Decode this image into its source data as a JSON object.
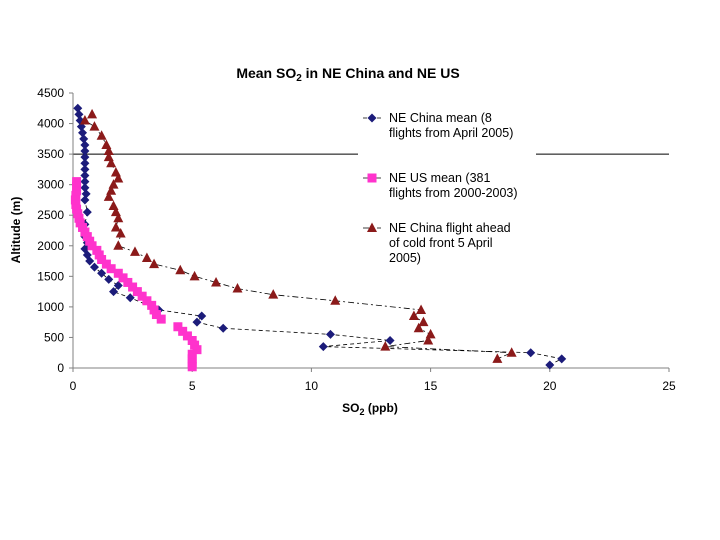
{
  "chart_data": {
    "type": "scatter",
    "title": "Mean SO",
    "title_sub": "2",
    "title_rest": " in NE China and NE US",
    "xlabel": "SO",
    "xlabel_sub": "2",
    "xlabel_rest": " (ppb)",
    "ylabel": "Altitude (m)",
    "xlim": [
      0,
      25
    ],
    "ylim": [
      0,
      4500
    ],
    "xticks": [
      "0",
      "5",
      "10",
      "15",
      "20",
      "25"
    ],
    "yticks": [
      "0",
      "500",
      "1000",
      "1500",
      "2000",
      "2500",
      "3000",
      "3500",
      "4000",
      "4500"
    ],
    "gridlines_y": [
      3500
    ],
    "legend_position": "right",
    "series": [
      {
        "name_lines": [
          "NE China mean (8",
          "flights from April 2005)"
        ],
        "marker": "diamond",
        "color": "#1c1c7a",
        "line": "dashed",
        "points": [
          [
            0.2,
            4250
          ],
          [
            0.25,
            4150
          ],
          [
            0.3,
            4050
          ],
          [
            0.35,
            3950
          ],
          [
            0.4,
            3850
          ],
          [
            0.45,
            3750
          ],
          [
            0.5,
            3650
          ],
          [
            0.5,
            3550
          ],
          [
            0.5,
            3450
          ],
          [
            0.5,
            3350
          ],
          [
            0.5,
            3250
          ],
          [
            0.5,
            3150
          ],
          [
            0.5,
            3050
          ],
          [
            0.5,
            2950
          ],
          [
            0.55,
            2850
          ],
          [
            0.5,
            2750
          ],
          [
            0.6,
            2550
          ],
          [
            0.5,
            2350
          ],
          [
            0.5,
            2150
          ],
          [
            0.6,
            2050
          ],
          [
            0.5,
            1950
          ],
          [
            0.6,
            1850
          ],
          [
            0.7,
            1750
          ],
          [
            0.9,
            1650
          ],
          [
            1.2,
            1550
          ],
          [
            1.5,
            1450
          ],
          [
            1.9,
            1350
          ],
          [
            1.7,
            1250
          ],
          [
            2.4,
            1150
          ],
          [
            3.6,
            950
          ],
          [
            5.4,
            850
          ],
          [
            5.2,
            750
          ],
          [
            6.3,
            650
          ],
          [
            10.8,
            550
          ],
          [
            13.3,
            450
          ],
          [
            10.5,
            350
          ],
          [
            19.2,
            250
          ],
          [
            20.5,
            150
          ],
          [
            20.0,
            50
          ]
        ]
      },
      {
        "name_lines": [
          "NE US mean (381",
          "flights from 2000-2003)"
        ],
        "marker": "square",
        "color": "#ff33cc",
        "line": "none",
        "points": [
          [
            0.15,
            3050
          ],
          [
            0.15,
            2975
          ],
          [
            0.15,
            2900
          ],
          [
            0.12,
            2825
          ],
          [
            0.1,
            2750
          ],
          [
            0.12,
            2675
          ],
          [
            0.15,
            2600
          ],
          [
            0.2,
            2525
          ],
          [
            0.25,
            2450
          ],
          [
            0.3,
            2375
          ],
          [
            0.4,
            2300
          ],
          [
            0.5,
            2225
          ],
          [
            0.6,
            2150
          ],
          [
            0.7,
            2075
          ],
          [
            0.8,
            2000
          ],
          [
            1.0,
            1925
          ],
          [
            1.1,
            1850
          ],
          [
            1.2,
            1775
          ],
          [
            1.4,
            1700
          ],
          [
            1.6,
            1625
          ],
          [
            1.9,
            1550
          ],
          [
            2.1,
            1475
          ],
          [
            2.3,
            1400
          ],
          [
            2.5,
            1325
          ],
          [
            2.7,
            1250
          ],
          [
            2.9,
            1175
          ],
          [
            3.1,
            1100
          ],
          [
            3.3,
            1025
          ],
          [
            3.4,
            950
          ],
          [
            3.5,
            875
          ],
          [
            3.7,
            800
          ],
          [
            4.4,
            675
          ],
          [
            4.6,
            600
          ],
          [
            4.8,
            525
          ],
          [
            5.0,
            450
          ],
          [
            5.1,
            375
          ],
          [
            5.2,
            300
          ],
          [
            5.0,
            225
          ],
          [
            5.0,
            150
          ],
          [
            5.0,
            75
          ],
          [
            5.0,
            20
          ]
        ]
      },
      {
        "name_lines": [
          "NE China flight ahead",
          "of cold front 5 April",
          "2005)"
        ],
        "marker": "triangle",
        "color": "#8b1a1a",
        "line": "dashdot",
        "points": [
          [
            0.8,
            4150
          ],
          [
            0.5,
            4050
          ],
          [
            0.9,
            3950
          ],
          [
            1.2,
            3800
          ],
          [
            1.4,
            3650
          ],
          [
            1.5,
            3550
          ],
          [
            1.5,
            3450
          ],
          [
            1.6,
            3350
          ],
          [
            1.8,
            3200
          ],
          [
            1.9,
            3100
          ],
          [
            1.7,
            3000
          ],
          [
            1.6,
            2900
          ],
          [
            1.5,
            2800
          ],
          [
            1.7,
            2650
          ],
          [
            1.8,
            2550
          ],
          [
            1.9,
            2450
          ],
          [
            1.8,
            2300
          ],
          [
            2.0,
            2200
          ],
          [
            1.9,
            2000
          ],
          [
            2.6,
            1900
          ],
          [
            3.1,
            1800
          ],
          [
            3.4,
            1700
          ],
          [
            4.5,
            1600
          ],
          [
            5.1,
            1500
          ],
          [
            6.0,
            1400
          ],
          [
            6.9,
            1300
          ],
          [
            8.4,
            1200
          ],
          [
            11.0,
            1100
          ],
          [
            14.6,
            950
          ],
          [
            14.3,
            850
          ],
          [
            14.7,
            750
          ],
          [
            14.5,
            650
          ],
          [
            15.0,
            550
          ],
          [
            14.9,
            450
          ],
          [
            13.1,
            350
          ],
          [
            18.4,
            250
          ],
          [
            17.8,
            150
          ]
        ]
      }
    ]
  }
}
